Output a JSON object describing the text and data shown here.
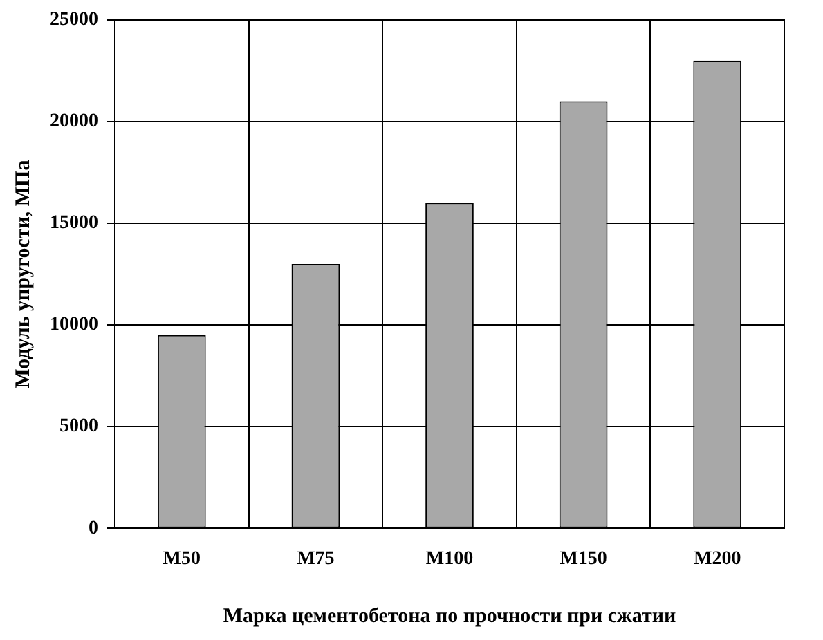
{
  "chart_data": {
    "type": "bar",
    "xlabel": "Марка цементобетона по прочности при сжатии",
    "ylabel": "Модуль упругости, МПа",
    "categories": [
      "М50",
      "М75",
      "М100",
      "М150",
      "М200"
    ],
    "values": [
      9500,
      13000,
      16000,
      21000,
      23000
    ],
    "color": "#a8a8a8",
    "ylim": [
      0,
      25000
    ],
    "yticks": [
      0,
      5000,
      10000,
      15000,
      20000,
      25000
    ],
    "grid": true
  }
}
